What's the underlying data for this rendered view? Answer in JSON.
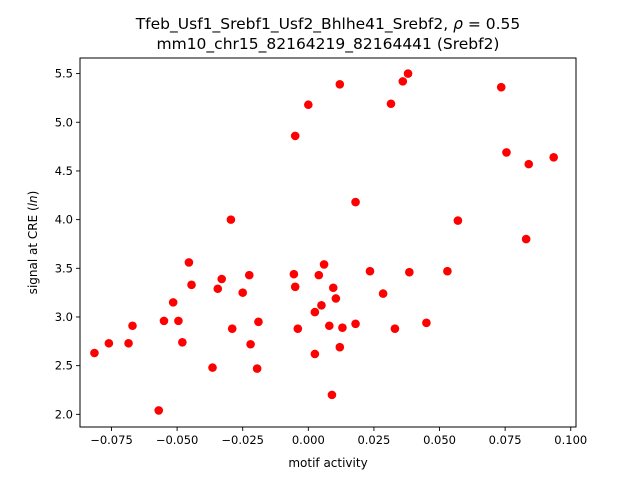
{
  "chart_data": {
    "type": "scatter",
    "title_line1_prefix": "Tfeb_Usf1_Srebf1_Usf2_Bhlhe41_Srebf2, ",
    "title_line1_rho": "ρ",
    "title_line1_suffix": " = 0.55",
    "title_line2": "mm10_chr15_82164219_82164441 (Srebf2)",
    "xlabel": "motif activity",
    "ylabel_prefix": "signal at CRE (",
    "ylabel_italic": "ln",
    "ylabel_suffix": ")",
    "xlim": [
      -0.087,
      0.102
    ],
    "ylim": [
      1.87,
      5.66
    ],
    "xticks": [
      -0.075,
      -0.05,
      -0.025,
      0.0,
      0.025,
      0.05,
      0.075,
      0.1
    ],
    "xtick_labels": [
      "−0.075",
      "−0.050",
      "−0.025",
      "0.000",
      "0.025",
      "0.050",
      "0.075",
      "0.100"
    ],
    "yticks": [
      2.0,
      2.5,
      3.0,
      3.5,
      4.0,
      4.5,
      5.0,
      5.5
    ],
    "ytick_labels": [
      "2.0",
      "2.5",
      "3.0",
      "3.5",
      "4.0",
      "4.5",
      "5.0",
      "5.5"
    ],
    "marker_color": "#ff0000",
    "grid": false,
    "points": [
      {
        "x": -0.0815,
        "y": 2.63
      },
      {
        "x": -0.076,
        "y": 2.73
      },
      {
        "x": -0.0685,
        "y": 2.73
      },
      {
        "x": -0.067,
        "y": 2.91
      },
      {
        "x": -0.057,
        "y": 2.04
      },
      {
        "x": -0.055,
        "y": 2.96
      },
      {
        "x": -0.0515,
        "y": 3.15
      },
      {
        "x": -0.0495,
        "y": 2.96
      },
      {
        "x": -0.048,
        "y": 2.74
      },
      {
        "x": -0.0455,
        "y": 3.56
      },
      {
        "x": -0.0445,
        "y": 3.33
      },
      {
        "x": -0.0365,
        "y": 2.48
      },
      {
        "x": -0.0345,
        "y": 3.29
      },
      {
        "x": -0.033,
        "y": 3.39
      },
      {
        "x": -0.0295,
        "y": 4.0
      },
      {
        "x": -0.029,
        "y": 2.88
      },
      {
        "x": -0.025,
        "y": 3.25
      },
      {
        "x": -0.0225,
        "y": 3.43
      },
      {
        "x": -0.022,
        "y": 2.72
      },
      {
        "x": -0.0195,
        "y": 2.47
      },
      {
        "x": -0.019,
        "y": 2.95
      },
      {
        "x": -0.0055,
        "y": 3.44
      },
      {
        "x": -0.005,
        "y": 3.31
      },
      {
        "x": -0.005,
        "y": 4.86
      },
      {
        "x": -0.004,
        "y": 2.88
      },
      {
        "x": 0.0,
        "y": 5.18
      },
      {
        "x": 0.0025,
        "y": 2.62
      },
      {
        "x": 0.0025,
        "y": 3.05
      },
      {
        "x": 0.004,
        "y": 3.43
      },
      {
        "x": 0.005,
        "y": 3.12
      },
      {
        "x": 0.006,
        "y": 3.54
      },
      {
        "x": 0.008,
        "y": 2.91
      },
      {
        "x": 0.009,
        "y": 2.2
      },
      {
        "x": 0.0095,
        "y": 3.3
      },
      {
        "x": 0.0105,
        "y": 3.19
      },
      {
        "x": 0.012,
        "y": 2.69
      },
      {
        "x": 0.012,
        "y": 5.39
      },
      {
        "x": 0.013,
        "y": 2.89
      },
      {
        "x": 0.018,
        "y": 4.18
      },
      {
        "x": 0.018,
        "y": 2.93
      },
      {
        "x": 0.0235,
        "y": 3.47
      },
      {
        "x": 0.0285,
        "y": 3.24
      },
      {
        "x": 0.0315,
        "y": 5.19
      },
      {
        "x": 0.033,
        "y": 2.88
      },
      {
        "x": 0.036,
        "y": 5.42
      },
      {
        "x": 0.038,
        "y": 5.5
      },
      {
        "x": 0.0385,
        "y": 3.46
      },
      {
        "x": 0.045,
        "y": 2.94
      },
      {
        "x": 0.053,
        "y": 3.47
      },
      {
        "x": 0.057,
        "y": 3.99
      },
      {
        "x": 0.0735,
        "y": 5.36
      },
      {
        "x": 0.0755,
        "y": 4.69
      },
      {
        "x": 0.083,
        "y": 3.8
      },
      {
        "x": 0.084,
        "y": 4.57
      },
      {
        "x": 0.0935,
        "y": 4.64
      }
    ]
  }
}
